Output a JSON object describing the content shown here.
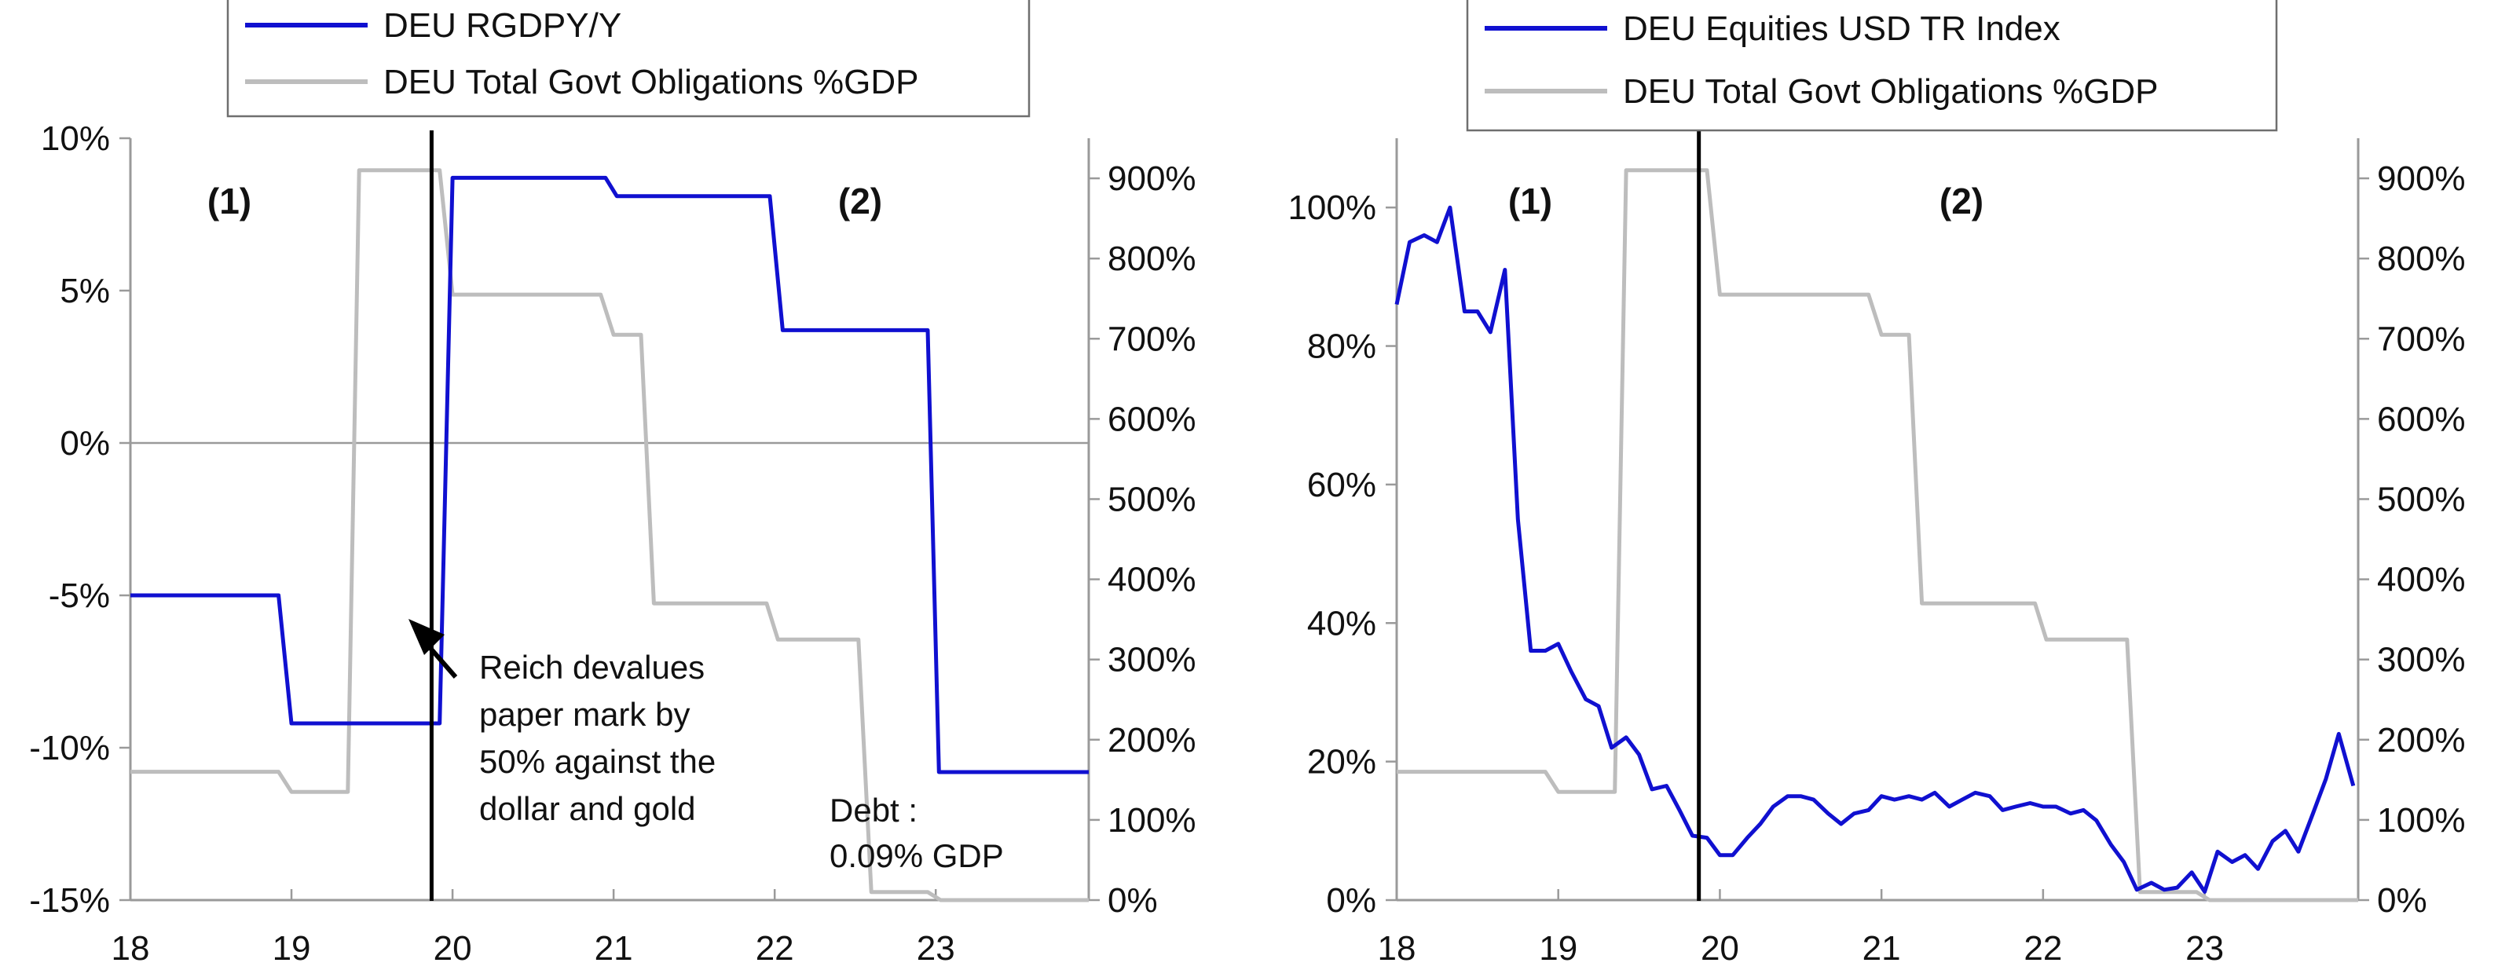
{
  "colors": {
    "primary": "#1010d0",
    "secondary": "#bdbdbd",
    "axis": "#9a9a9a",
    "marker": "#000000",
    "text": "#111111"
  },
  "chart_data": [
    {
      "type": "line",
      "legend": [
        "DEU RGDPY/Y",
        "DEU Total Govt Obligations %GDP"
      ],
      "legend_placement": "top",
      "grid": false,
      "x_ticks": [
        "18",
        "19",
        "20",
        "21",
        "22",
        "23"
      ],
      "xlim": [
        1918,
        1923.95
      ],
      "y_left": {
        "ticks": [
          "10%",
          "5%",
          "0%",
          "-5%",
          "-10%",
          "-15%"
        ],
        "ylim": [
          -15,
          10
        ]
      },
      "y_right": {
        "ticks": [
          "900%",
          "800%",
          "700%",
          "600%",
          "500%",
          "400%",
          "300%",
          "200%",
          "100%",
          "0%"
        ],
        "ylim": [
          0,
          950
        ]
      },
      "region_labels": [
        "(1)",
        "(2)"
      ],
      "marker_line_x": 1919.87,
      "annotations": {
        "arrow_text": [
          "Reich devalues",
          "paper mark by",
          "50% against the",
          "dollar and gold"
        ],
        "debt_text": [
          "Debt :",
          "0.09% GDP"
        ]
      },
      "series": [
        {
          "name": "DEU RGDPY/Y",
          "axis": "left",
          "color": "#1010d0",
          "x": [
            1918,
            1918.92,
            1919.0,
            1919.92,
            1920.0,
            1920.95,
            1921.02,
            1921.97,
            1922.05,
            1922.95,
            1923.02,
            1923.95
          ],
          "y": [
            -5.0,
            -5.0,
            -9.2,
            -9.2,
            8.7,
            8.7,
            8.1,
            8.1,
            3.7,
            3.7,
            -10.8,
            -10.8
          ]
        },
        {
          "name": "DEU Total Govt Obligations %GDP",
          "axis": "right",
          "color": "#bdbdbd",
          "x": [
            1918,
            1918.92,
            1919.0,
            1919.35,
            1919.42,
            1919.92,
            1920.0,
            1920.92,
            1921.0,
            1921.17,
            1921.25,
            1921.95,
            1922.02,
            1922.52,
            1922.6,
            1922.95,
            1923.03,
            1923.95
          ],
          "y": [
            160,
            160,
            135,
            135,
            910,
            910,
            755,
            755,
            705,
            705,
            370,
            370,
            325,
            325,
            10,
            10,
            0,
            0
          ]
        }
      ]
    },
    {
      "type": "line",
      "legend": [
        "DEU Equities USD TR Index",
        "DEU Total Govt Obligations %GDP"
      ],
      "legend_placement": "top",
      "grid": false,
      "x_ticks": [
        "18",
        "19",
        "20",
        "21",
        "22",
        "23"
      ],
      "xlim": [
        1918,
        1923.95
      ],
      "y_left": {
        "ticks": [
          "100%",
          "80%",
          "60%",
          "40%",
          "20%",
          "0%"
        ],
        "ylim": [
          0,
          110
        ]
      },
      "y_right": {
        "ticks": [
          "900%",
          "800%",
          "700%",
          "600%",
          "500%",
          "400%",
          "300%",
          "200%",
          "100%",
          "0%"
        ],
        "ylim": [
          0,
          950
        ]
      },
      "region_labels": [
        "(1)",
        "(2)"
      ],
      "marker_line_x": 1919.87,
      "series": [
        {
          "name": "DEU Equities USD TR Index",
          "axis": "left",
          "color": "#1010d0",
          "x": [
            1918.0,
            1918.08,
            1918.17,
            1918.25,
            1918.33,
            1918.42,
            1918.5,
            1918.58,
            1918.67,
            1918.75,
            1918.83,
            1918.92,
            1919.0,
            1919.08,
            1919.17,
            1919.25,
            1919.33,
            1919.42,
            1919.5,
            1919.58,
            1919.67,
            1919.75,
            1919.83,
            1919.92,
            1920.0,
            1920.08,
            1920.17,
            1920.25,
            1920.33,
            1920.42,
            1920.5,
            1920.58,
            1920.67,
            1920.75,
            1920.83,
            1920.92,
            1921.0,
            1921.08,
            1921.17,
            1921.25,
            1921.33,
            1921.42,
            1921.5,
            1921.58,
            1921.67,
            1921.75,
            1921.83,
            1921.92,
            1922.0,
            1922.08,
            1922.17,
            1922.25,
            1922.33,
            1922.42,
            1922.5,
            1922.58,
            1922.67,
            1922.75,
            1922.83,
            1922.92,
            1923.0,
            1923.08,
            1923.17,
            1923.25,
            1923.33,
            1923.42,
            1923.5,
            1923.58,
            1923.67,
            1923.75,
            1923.83,
            1923.92
          ],
          "y": [
            86,
            95,
            96,
            95,
            100,
            85,
            85,
            82,
            91,
            55,
            36,
            36,
            37,
            33,
            29,
            28,
            22,
            23.5,
            21,
            16,
            16.5,
            13,
            9.3,
            9,
            6.5,
            6.5,
            9,
            11,
            13.5,
            15,
            15,
            14.5,
            12.5,
            11,
            12.5,
            13,
            15,
            14.5,
            15,
            14.5,
            15.5,
            13.5,
            14.5,
            15.5,
            15,
            13,
            13.5,
            14,
            13.5,
            13.5,
            12.5,
            13,
            11.5,
            8,
            5.5,
            1.5,
            2.5,
            1.5,
            1.8,
            4,
            1.2,
            7,
            5.5,
            6.5,
            4.5,
            8.5,
            10,
            7,
            12.5,
            17.5,
            24,
            16.5
          ]
        },
        {
          "name": "DEU Total Govt Obligations %GDP",
          "axis": "right",
          "color": "#bdbdbd",
          "x": [
            1918,
            1918.92,
            1919.0,
            1919.35,
            1919.42,
            1919.92,
            1920.0,
            1920.92,
            1921.0,
            1921.17,
            1921.25,
            1921.95,
            1922.02,
            1922.52,
            1922.6,
            1922.95,
            1923.03,
            1923.95
          ],
          "y": [
            160,
            160,
            135,
            135,
            910,
            910,
            755,
            755,
            705,
            705,
            370,
            370,
            325,
            325,
            10,
            10,
            0,
            0
          ]
        }
      ]
    }
  ]
}
